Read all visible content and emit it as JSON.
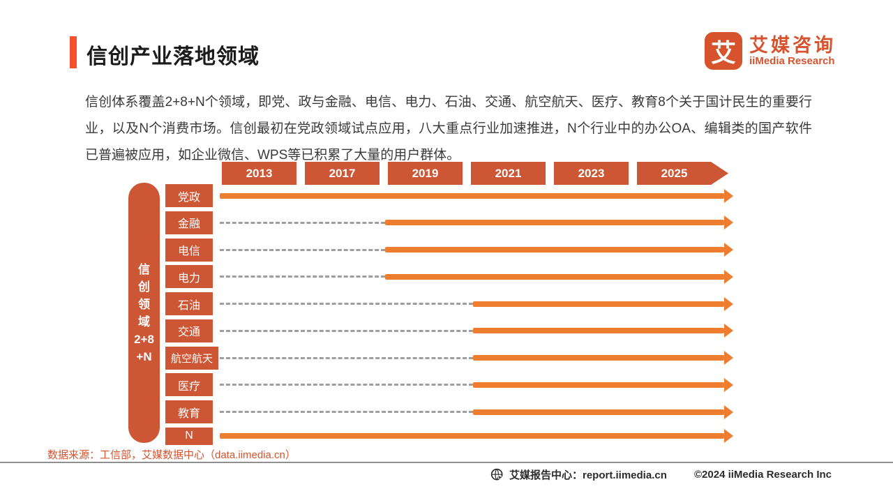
{
  "header": {
    "title": "信创产业落地领域",
    "logo": {
      "mark": "艾",
      "name_cn": "艾媒咨询",
      "name_en": "iiMedia Research"
    }
  },
  "intro": "信创体系覆盖2+8+N个领域，即党、政与金融、电信、电力、石油、交通、航空航天、医疗、教育8个关于国计民生的重要行业，以及N个消费市场。信创最初在党政领域试点应用，八大重点行业加速推进，N个行业中的办公OA、编辑类的国产软件已普遍被应用，如企业微信、WPS等已积累了大量的用户群体。",
  "chart_data": {
    "type": "timeline",
    "title": "信创产业落地领域",
    "years": [
      "2013",
      "2017",
      "2019",
      "2021",
      "2023",
      "2025"
    ],
    "axis_label": "信创领域2+8+N",
    "axis_segments": [
      "信",
      "创",
      "领",
      "域",
      "2+8",
      "+N"
    ],
    "rows": [
      {
        "label": "党政",
        "start_year": "2013",
        "solid_start_pct": 0
      },
      {
        "label": "金融",
        "start_year": "2019",
        "solid_start_pct": 32.2
      },
      {
        "label": "电信",
        "start_year": "2019",
        "solid_start_pct": 32.2
      },
      {
        "label": "电力",
        "start_year": "2019",
        "solid_start_pct": 32.2
      },
      {
        "label": "石油",
        "start_year": "2021",
        "solid_start_pct": 49.3
      },
      {
        "label": "交通",
        "start_year": "2021",
        "solid_start_pct": 49.3
      },
      {
        "label": "航空航天",
        "start_year": "2021",
        "solid_start_pct": 49.3,
        "wide": true
      },
      {
        "label": "医疗",
        "start_year": "2021",
        "solid_start_pct": 49.3
      },
      {
        "label": "教育",
        "start_year": "2021",
        "solid_start_pct": 49.3
      },
      {
        "label": "N",
        "start_year": "2013",
        "solid_start_pct": 0,
        "compact": true
      }
    ],
    "colors": {
      "accent": "#F4512C",
      "box": "#CD5634",
      "arrow": "#EE7D2F",
      "dash": "#9E9E9E",
      "logo": "#D6532E"
    }
  },
  "source": "数据来源：工信部，艾媒数据中心（data.iimedia.cn）",
  "footer": {
    "report_center": "艾媒报告中心：report.iimedia.cn",
    "copyright": "©2024  iiMedia Research Inc"
  }
}
